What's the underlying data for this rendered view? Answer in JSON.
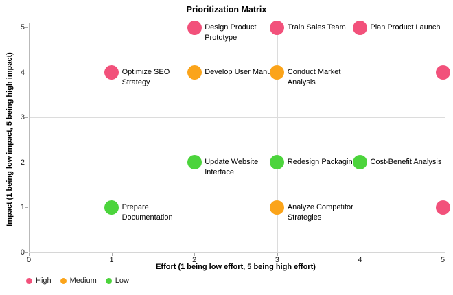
{
  "chart_data": {
    "type": "scatter",
    "title": "Prioritization Matrix",
    "xlabel": "Effort (1 being low effort, 5 being high effort)",
    "ylabel": "Impact (1 being low impact, 5 being high impact)",
    "xlim": [
      0,
      5
    ],
    "ylim": [
      0,
      5
    ],
    "xticks": [
      "0",
      "1",
      "2",
      "3",
      "4",
      "5"
    ],
    "yticks": [
      "0",
      "1",
      "2",
      "3",
      "4",
      "5"
    ],
    "grid": "quadrant lines only",
    "quadrant_lines": {
      "x": 3,
      "y": 3
    },
    "legend_position": "bottom-left",
    "legend": [
      {
        "label": "High",
        "color": "#F2517B"
      },
      {
        "label": "Medium",
        "color": "#FBA41A"
      },
      {
        "label": "Low",
        "color": "#4CD43C"
      }
    ],
    "points": [
      {
        "x": 2,
        "y": 5,
        "series": "High",
        "label": "Design Product Prototype",
        "label_lines": [
          "Design Product",
          "Prototype"
        ]
      },
      {
        "x": 3,
        "y": 5,
        "series": "High",
        "label": "Train Sales Team",
        "label_lines": [
          "Train Sales Team"
        ]
      },
      {
        "x": 4,
        "y": 5,
        "series": "High",
        "label": "Plan Product Launch",
        "label_lines": [
          "Plan Product Launch"
        ]
      },
      {
        "x": 1,
        "y": 4,
        "series": "High",
        "label": "Optimize SEO Strategy",
        "label_lines": [
          "Optimize SEO",
          "Strategy"
        ]
      },
      {
        "x": 2,
        "y": 4,
        "series": "Medium",
        "label": "Develop User Manual",
        "label_lines": [
          "Develop User Manual"
        ]
      },
      {
        "x": 3,
        "y": 4,
        "series": "Medium",
        "label": "Conduct Market Analysis",
        "label_lines": [
          "Conduct Market",
          "Analysis"
        ]
      },
      {
        "x": 5,
        "y": 4,
        "series": "High",
        "label": "",
        "label_lines": []
      },
      {
        "x": 2,
        "y": 2,
        "series": "Low",
        "label": "Update Website Interface",
        "label_lines": [
          "Update Website",
          "Interface"
        ]
      },
      {
        "x": 3,
        "y": 2,
        "series": "Low",
        "label": "Redesign Packaging",
        "label_lines": [
          "Redesign Packaging"
        ]
      },
      {
        "x": 4,
        "y": 2,
        "series": "Low",
        "label": "Cost-Benefit Analysis",
        "label_lines": [
          "Cost-Benefit Analysis"
        ]
      },
      {
        "x": 1,
        "y": 1,
        "series": "Low",
        "label": "Prepare Documentation",
        "label_lines": [
          "Prepare",
          "Documentation"
        ]
      },
      {
        "x": 3,
        "y": 1,
        "series": "Medium",
        "label": "Analyze Competitor Strategies",
        "label_lines": [
          "Analyze Competitor",
          "Strategies"
        ]
      },
      {
        "x": 5,
        "y": 1,
        "series": "High",
        "label": "",
        "label_lines": []
      }
    ]
  }
}
